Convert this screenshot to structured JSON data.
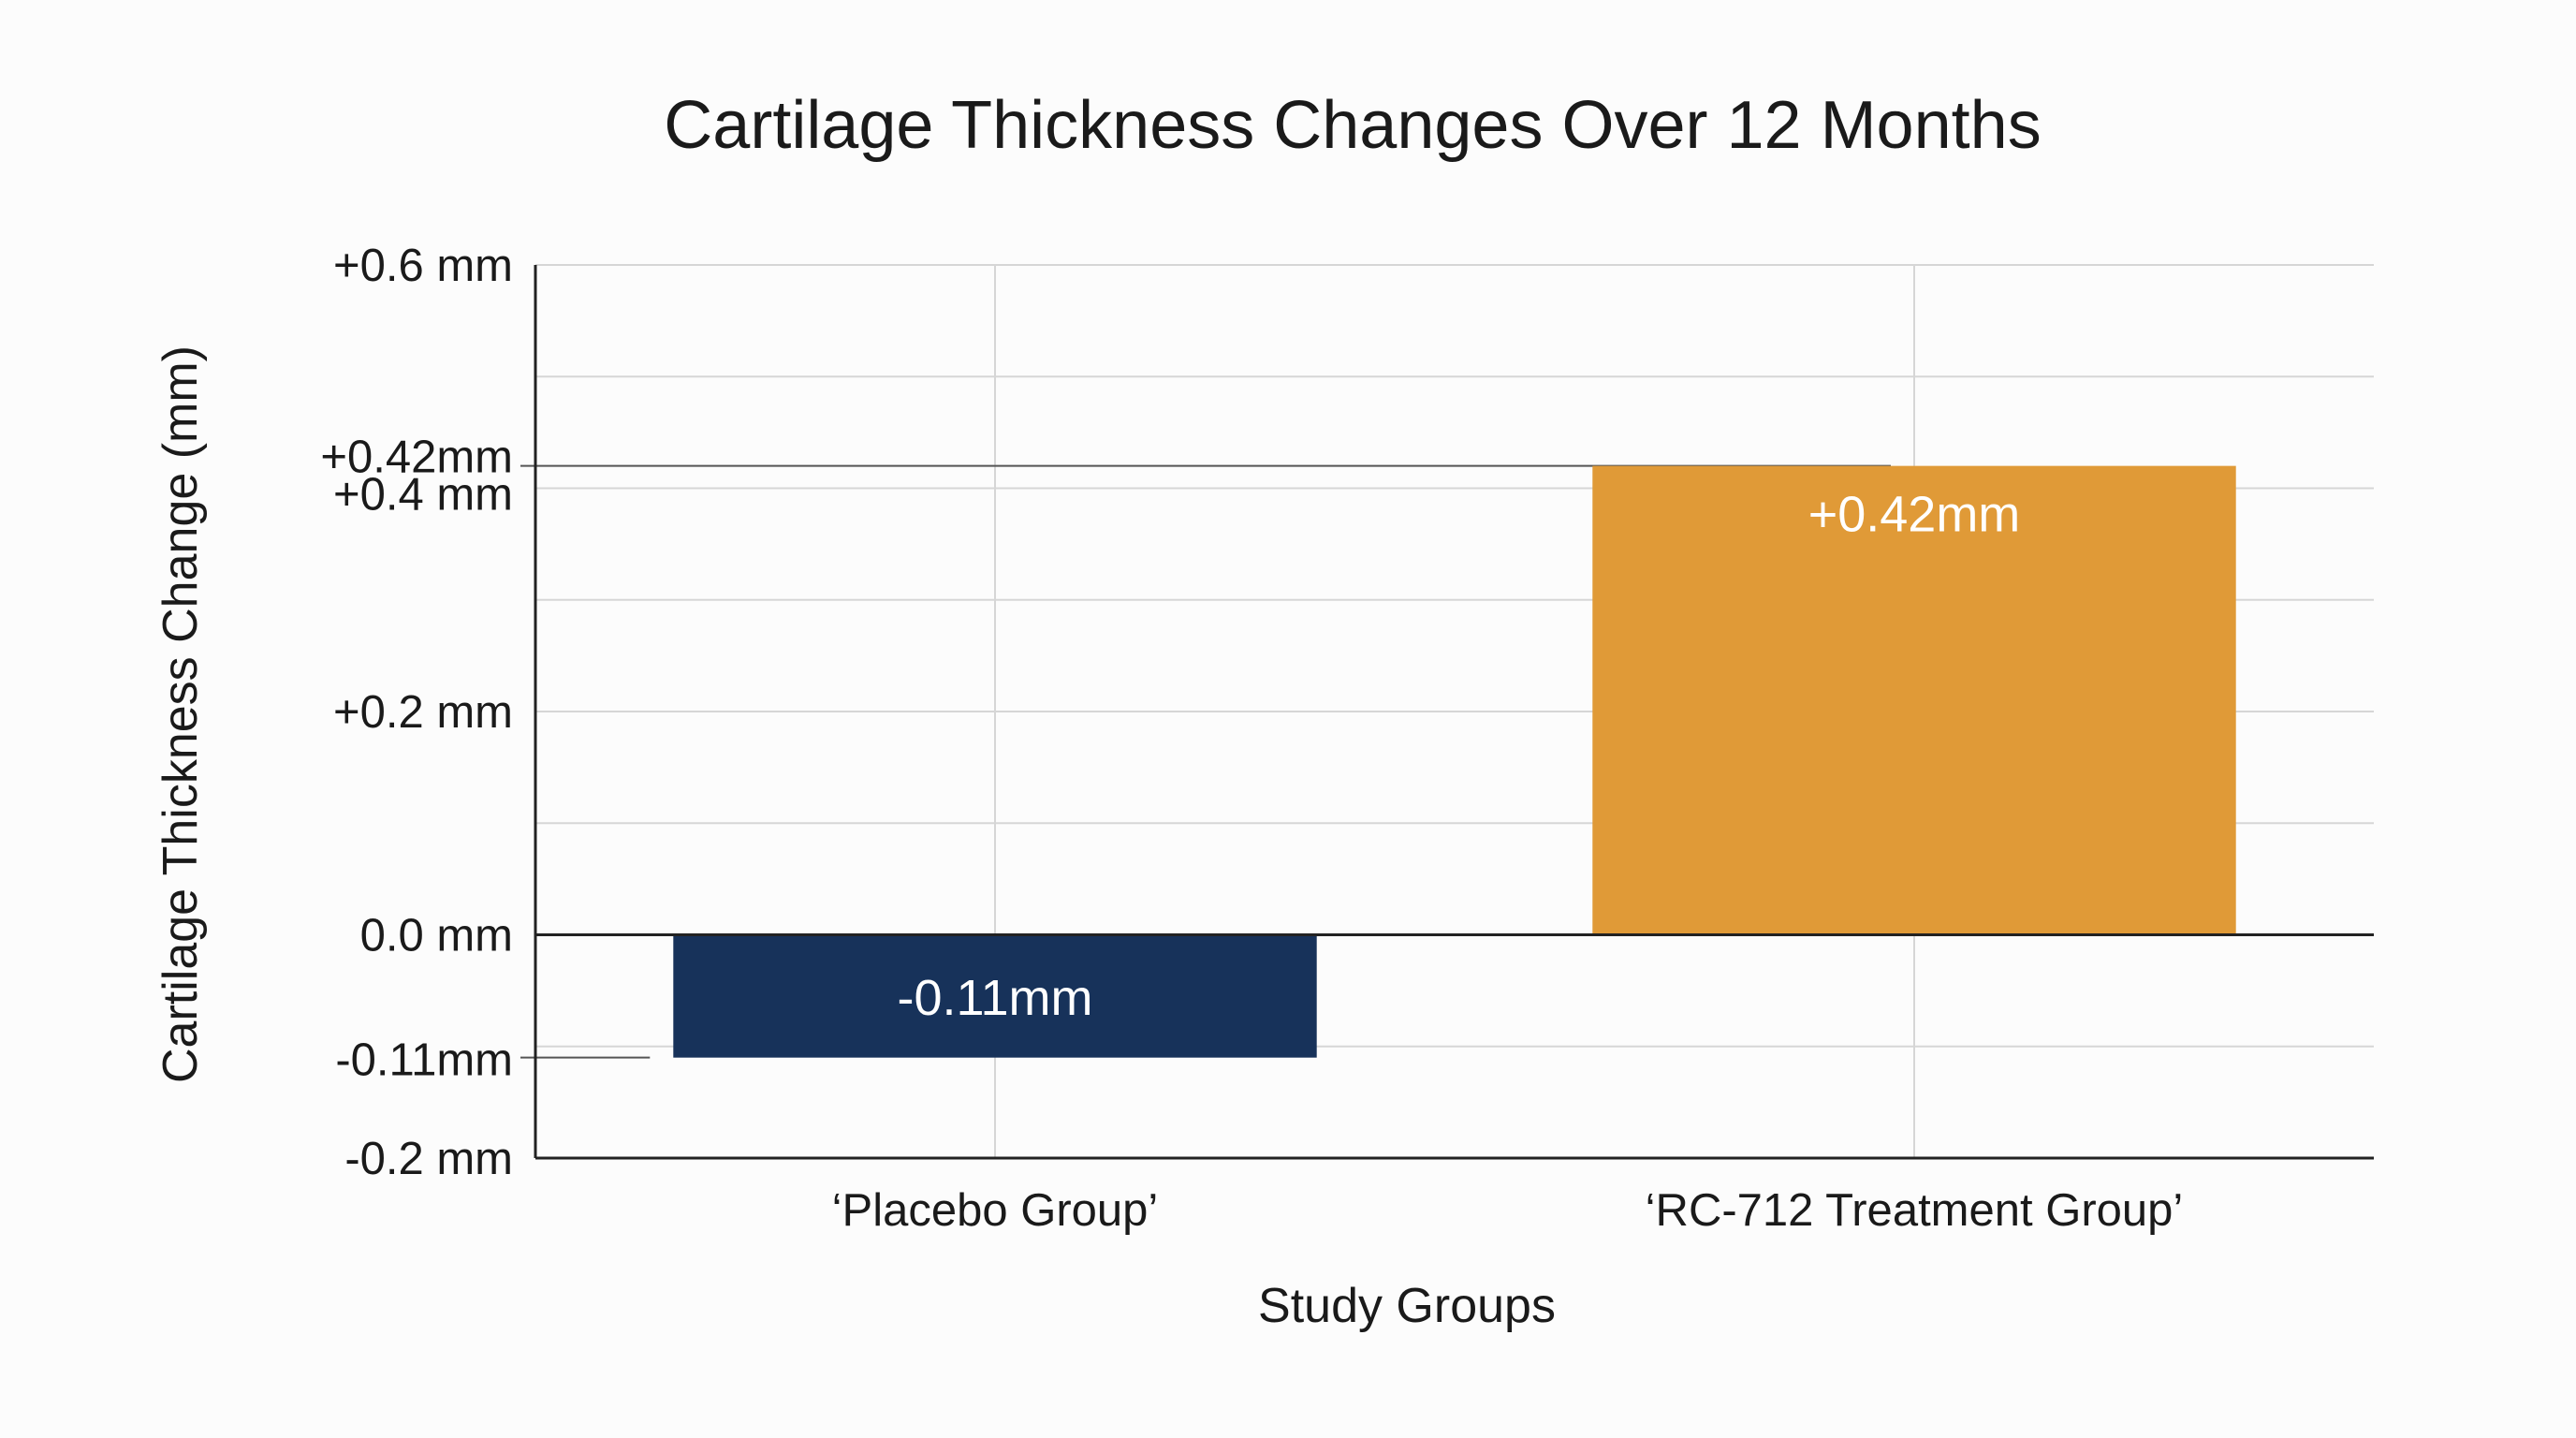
{
  "chart_data": {
    "type": "bar",
    "title": "Cartilage Thickness Changes Over 12 Months",
    "xlabel": "Study Groups",
    "ylabel": "Cartilage Thickness Change (mm)",
    "categories": [
      "‘Placebo Group’",
      "‘RC-712 Treatment Group’"
    ],
    "values": [
      -0.11,
      0.42
    ],
    "data_labels": [
      "-0.11mm",
      "+0.42mm"
    ],
    "colors": [
      "#17325a",
      "#e09a37"
    ],
    "ylim": [
      -0.2,
      0.6
    ],
    "y_ticks": [
      {
        "value": 0.6,
        "label": "+0.6 mm"
      },
      {
        "value": 0.42,
        "label": "+0.42mm"
      },
      {
        "value": 0.4,
        "label": "+0.4 mm"
      },
      {
        "value": 0.2,
        "label": "+0.2 mm"
      },
      {
        "value": 0.0,
        "label": "0.0 mm"
      },
      {
        "value": -0.11,
        "label": "-0.11mm"
      },
      {
        "value": -0.2,
        "label": "-0.2 mm"
      }
    ],
    "gridlines": [
      0.6,
      0.5,
      0.4,
      0.3,
      0.2,
      0.1,
      -0.1
    ],
    "reference_lines": [
      0.42,
      -0.11
    ],
    "grid": true,
    "legend": "none"
  }
}
